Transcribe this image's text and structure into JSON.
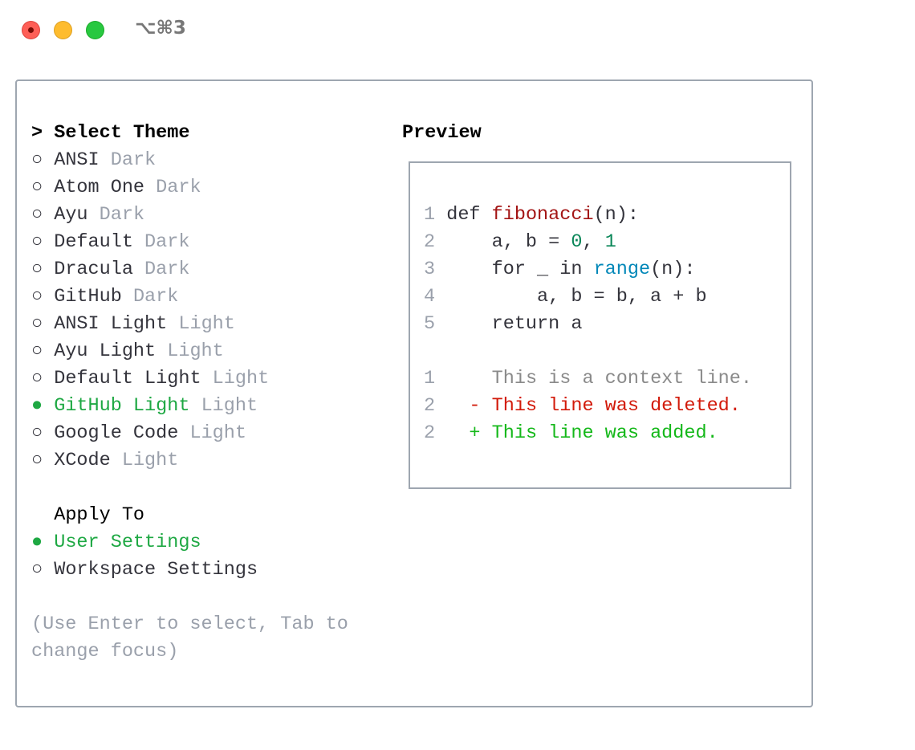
{
  "window": {
    "shortcut": "⌥⌘3"
  },
  "themes": {
    "heading_prefix": ">",
    "heading": "Select Theme",
    "items": [
      {
        "name": "ANSI",
        "type": "Dark",
        "selected": false
      },
      {
        "name": "Atom One",
        "type": "Dark",
        "selected": false
      },
      {
        "name": "Ayu",
        "type": "Dark",
        "selected": false
      },
      {
        "name": "Default",
        "type": "Dark",
        "selected": false
      },
      {
        "name": "Dracula",
        "type": "Dark",
        "selected": false
      },
      {
        "name": "GitHub",
        "type": "Dark",
        "selected": false
      },
      {
        "name": "ANSI Light",
        "type": "Light",
        "selected": false
      },
      {
        "name": "Ayu Light",
        "type": "Light",
        "selected": false
      },
      {
        "name": "Default Light",
        "type": "Light",
        "selected": false
      },
      {
        "name": "GitHub Light",
        "type": "Light",
        "selected": true
      },
      {
        "name": "Google Code",
        "type": "Light",
        "selected": false
      },
      {
        "name": "XCode",
        "type": "Light",
        "selected": false
      }
    ]
  },
  "apply_to": {
    "heading": "Apply To",
    "items": [
      {
        "name": "User Settings",
        "selected": true
      },
      {
        "name": "Workspace Settings",
        "selected": false
      }
    ]
  },
  "help": {
    "line1": "(Use Enter to select, Tab to",
    "line2": "change focus)"
  },
  "preview": {
    "title": "Preview",
    "code": [
      {
        "n": "1",
        "parts": [
          [
            "def ",
            ""
          ],
          [
            "fibonacci",
            "fn"
          ],
          [
            "(n):",
            ""
          ]
        ]
      },
      {
        "n": "2",
        "parts": [
          [
            "    a, b = ",
            ""
          ],
          [
            "0",
            "num"
          ],
          [
            ", ",
            ""
          ],
          [
            "1",
            "num"
          ]
        ]
      },
      {
        "n": "3",
        "parts": [
          [
            "    for _ in ",
            ""
          ],
          [
            "range",
            "bi"
          ],
          [
            "(n):",
            ""
          ]
        ]
      },
      {
        "n": "4",
        "parts": [
          [
            "        a, b = b, a + b",
            ""
          ]
        ]
      },
      {
        "n": "5",
        "parts": [
          [
            "    return a",
            ""
          ]
        ]
      }
    ],
    "diff": [
      {
        "n": "1",
        "marker": " ",
        "text": "This is a context line.",
        "kind": "ctx"
      },
      {
        "n": "2",
        "marker": "-",
        "text": "This line was deleted.",
        "kind": "del"
      },
      {
        "n": "2",
        "marker": "+",
        "text": "This line was added.",
        "kind": "add"
      }
    ]
  },
  "colors": {
    "selected": "#1ea843",
    "muted": "#9aa0ab",
    "function": "#a31515",
    "number": "#098658",
    "builtin": "#0087b8",
    "deleted": "#d21a0a",
    "added": "#15b81a"
  },
  "icons": {
    "unselected": "radio-empty-icon",
    "selected": "radio-filled-icon"
  }
}
